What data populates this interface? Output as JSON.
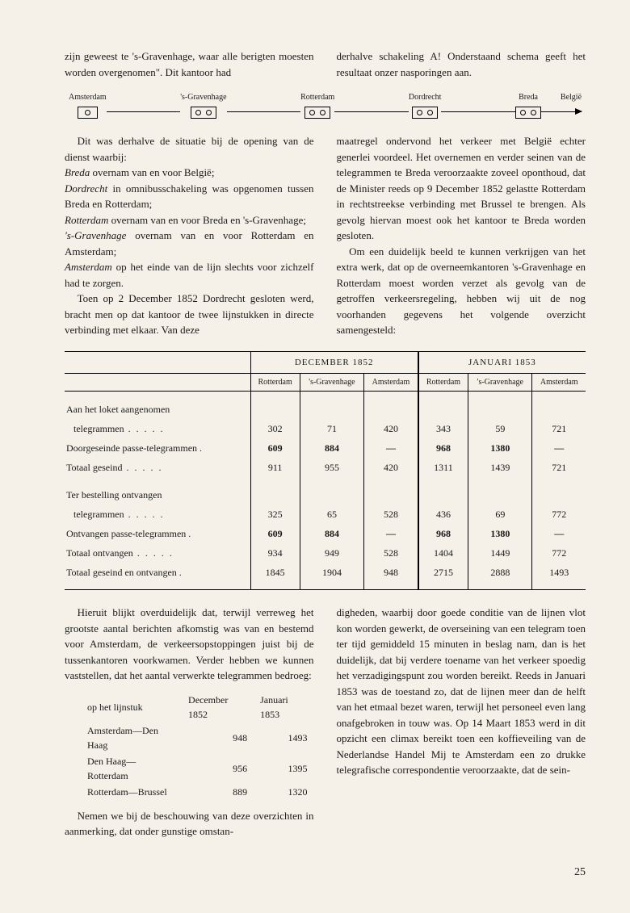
{
  "top": {
    "left": "zijn geweest te 's-Gravenhage, waar alle berigten moesten worden overgenomen\". Dit kantoor had",
    "right": "derhalve schakeling A! Onderstaand schema geeft het resultaat onzer nasporingen aan."
  },
  "diagram": {
    "stations": [
      "Amsterdam",
      "'s-Gravenhage",
      "Rotterdam",
      "Dordrecht",
      "Breda"
    ],
    "end": "België"
  },
  "mid": {
    "left": {
      "l1": "Dit was derhalve de situatie bij de opening van de dienst waarbij:",
      "l2a": "Breda",
      "l2b": " overnam van en voor België;",
      "l3a": "Dordrecht",
      "l3b": " in omnibusschakeling was opgenomen tussen Breda en Rotterdam;",
      "l4a": "Rotterdam",
      "l4b": " overnam van en voor Breda en 's-Gravenhage;",
      "l5a": "'s-Gravenhage",
      "l5b": " overnam van en voor Rotterdam en Amsterdam;",
      "l6a": "Amsterdam",
      "l6b": " op het einde van de lijn slechts voor zichzelf had te zorgen.",
      "l7": "Toen op 2 December 1852 Dordrecht gesloten werd, bracht men op dat kantoor de twee lijnstukken in directe verbinding met elkaar. Van deze"
    },
    "right": {
      "r1": "maatregel ondervond het verkeer met België echter generlei voordeel. Het overnemen en verder seinen van de telegrammen te Breda veroorzaakte zoveel oponthoud, dat de Minister reeds op 9 December 1852 gelastte Rotterdam in rechtstreekse verbinding met Brussel te brengen. Als gevolg hiervan moest ook het kantoor te Breda worden gesloten.",
      "r2": "Om een duidelijk beeld te kunnen verkrijgen van het extra werk, dat op de overneemkantoren 's-Gravenhage en Rotterdam moest worden verzet als gevolg van de getroffen verkeersregeling, hebben wij uit de nog voorhanden gegevens het volgende overzicht samengesteld:"
    }
  },
  "table": {
    "period1": "DECEMBER 1852",
    "period2": "JANUARI 1853",
    "cities": [
      "Rotterdam",
      "'s-Gravenhage",
      "Amsterdam"
    ],
    "rows": [
      {
        "label": "Aan het loket aangenomen",
        "sublabel": "telegrammen",
        "dots": true,
        "v": [
          "302",
          "71",
          "420",
          "343",
          "59",
          "721"
        ],
        "bold": false
      },
      {
        "label": "Doorgeseinde passe-telegrammen",
        "dots": false,
        "v": [
          "609",
          "884",
          "—",
          "968",
          "1380",
          "—"
        ],
        "bold": true
      },
      {
        "label": "Totaal geseind",
        "dots": true,
        "v": [
          "911",
          "955",
          "420",
          "1311",
          "1439",
          "721"
        ],
        "bold": false
      },
      {
        "label": "Ter bestelling ontvangen",
        "sublabel": "telegrammen",
        "dots": true,
        "v": [
          "325",
          "65",
          "528",
          "436",
          "69",
          "772"
        ],
        "bold": false,
        "gap": true
      },
      {
        "label": "Ontvangen passe-telegrammen",
        "dots": false,
        "v": [
          "609",
          "884",
          "—",
          "968",
          "1380",
          "—"
        ],
        "bold": true
      },
      {
        "label": "Totaal ontvangen",
        "dots": true,
        "v": [
          "934",
          "949",
          "528",
          "1404",
          "1449",
          "772"
        ],
        "bold": false
      },
      {
        "label": "Totaal geseind en ontvangen",
        "dots": false,
        "v": [
          "1845",
          "1904",
          "948",
          "2715",
          "2888",
          "1493"
        ],
        "bold": false
      }
    ]
  },
  "bottom": {
    "left1": "Hieruit blijkt overduidelijk dat, terwijl verreweg het grootste aantal berichten afkomstig was van en bestemd voor Amsterdam, de verkeersopstoppingen juist bij de tussenkantoren voorkwamen. Verder hebben we kunnen vaststellen, dat het aantal verwerkte telegrammen bedroeg:",
    "small": {
      "h1": "op het lijnstuk",
      "h2": "December 1852",
      "h3": "Januari 1853",
      "rows": [
        {
          "r": "Amsterdam—Den Haag",
          "a": "948",
          "b": "1493"
        },
        {
          "r": "Den Haag—Rotterdam",
          "a": "956",
          "b": "1395"
        },
        {
          "r": "Rotterdam—Brussel",
          "a": "889",
          "b": "1320"
        }
      ]
    },
    "left2": "Nemen we bij de beschouwing van deze overzichten in aanmerking, dat onder gunstige omstan-",
    "right": "digheden, waarbij door goede conditie van de lijnen vlot kon worden gewerkt, de overseining van een telegram toen ter tijd gemiddeld 15 minuten in beslag nam, dan is het duidelijk, dat bij verdere toename van het verkeer spoedig het verzadigingspunt zou worden bereikt. Reeds in Januari 1853 was de toestand zo, dat de lijnen meer dan de helft van het etmaal bezet waren, terwijl het personeel even lang onafgebroken in touw was. Op 14 Maart 1853 werd in dit opzicht een climax bereikt toen een koffieveiling van de Nederlandse Handel Mij te Amsterdam een zo drukke telegrafische correspondentie veroorzaakte, dat de sein-"
  },
  "page": "25"
}
